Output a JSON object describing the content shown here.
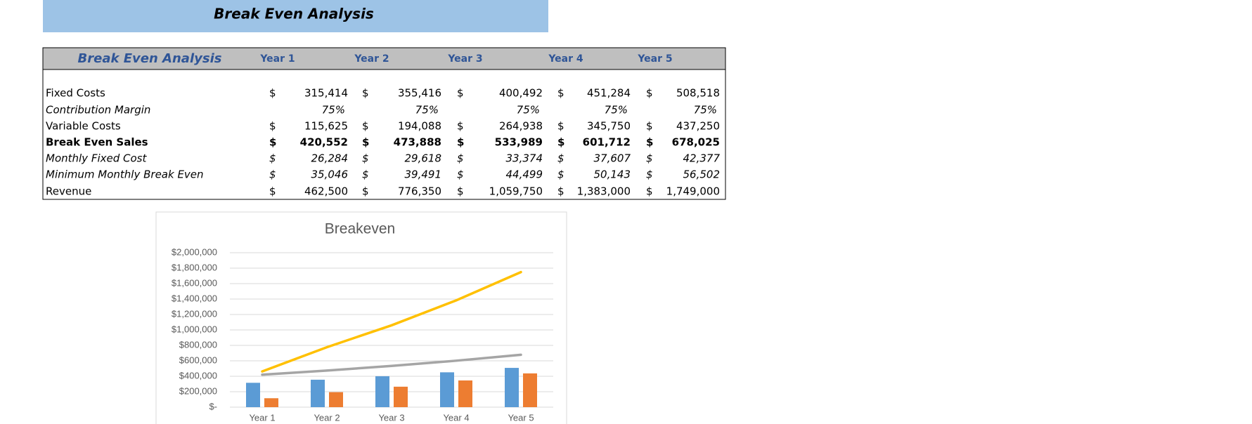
{
  "header": {
    "title": "Break Even Analysis"
  },
  "table": {
    "title": "Break Even Analysis",
    "columns": [
      "Year 1",
      "Year 2",
      "Year 3",
      "Year 4",
      "Year 5"
    ],
    "currency": "$",
    "rows": [
      {
        "label": "Fixed Costs",
        "values": [
          "315,414",
          "355,416",
          "400,492",
          "451,284",
          "508,518"
        ]
      },
      {
        "label": "Contribution Margin",
        "values": [
          "75%",
          "75%",
          "75%",
          "75%",
          "75%"
        ]
      },
      {
        "label": "Variable Costs",
        "values": [
          "115,625",
          "194,088",
          "264,938",
          "345,750",
          "437,250"
        ]
      },
      {
        "label": "Break Even Sales",
        "values": [
          "420,552",
          "473,888",
          "533,989",
          "601,712",
          "678,025"
        ]
      },
      {
        "label": "Monthly Fixed Cost",
        "values": [
          "26,284",
          "29,618",
          "33,374",
          "37,607",
          "42,377"
        ]
      },
      {
        "label": "Minimum Monthly Break Even",
        "values": [
          "35,046",
          "39,491",
          "44,499",
          "50,143",
          "56,502"
        ]
      },
      {
        "label": "Revenue",
        "values": [
          "462,500",
          "776,350",
          "1,059,750",
          "1,383,000",
          "1,749,000"
        ]
      }
    ]
  },
  "chart_data": {
    "type": "bar",
    "title": "Breakeven",
    "categories": [
      "Year 1",
      "Year 2",
      "Year 3",
      "Year 4",
      "Year 5"
    ],
    "series": [
      {
        "kind": "bar",
        "color": "#5b9bd5",
        "values": [
          315414,
          355416,
          400492,
          451284,
          508518
        ]
      },
      {
        "kind": "bar",
        "color": "#ed7d31",
        "values": [
          115625,
          194088,
          264938,
          345750,
          437250
        ]
      },
      {
        "kind": "line",
        "color": "#a5a5a5",
        "values": [
          420552,
          473888,
          533989,
          601712,
          678025
        ]
      },
      {
        "kind": "line",
        "color": "#ffc000",
        "values": [
          462500,
          776350,
          1059750,
          1383000,
          1749000
        ]
      }
    ],
    "ylim": [
      0,
      2000000
    ],
    "yticks": [
      {
        "value": 0,
        "label": "$-"
      },
      {
        "value": 200000,
        "label": "$200,000"
      },
      {
        "value": 400000,
        "label": "$400,000"
      },
      {
        "value": 600000,
        "label": "$600,000"
      },
      {
        "value": 800000,
        "label": "$800,000"
      },
      {
        "value": 1000000,
        "label": "$1,000,000"
      },
      {
        "value": 1200000,
        "label": "$1,200,000"
      },
      {
        "value": 1400000,
        "label": "$1,400,000"
      },
      {
        "value": 1600000,
        "label": "$1,600,000"
      },
      {
        "value": 1800000,
        "label": "$1,800,000"
      },
      {
        "value": 2000000,
        "label": "$2,000,000"
      }
    ],
    "grid": true
  }
}
